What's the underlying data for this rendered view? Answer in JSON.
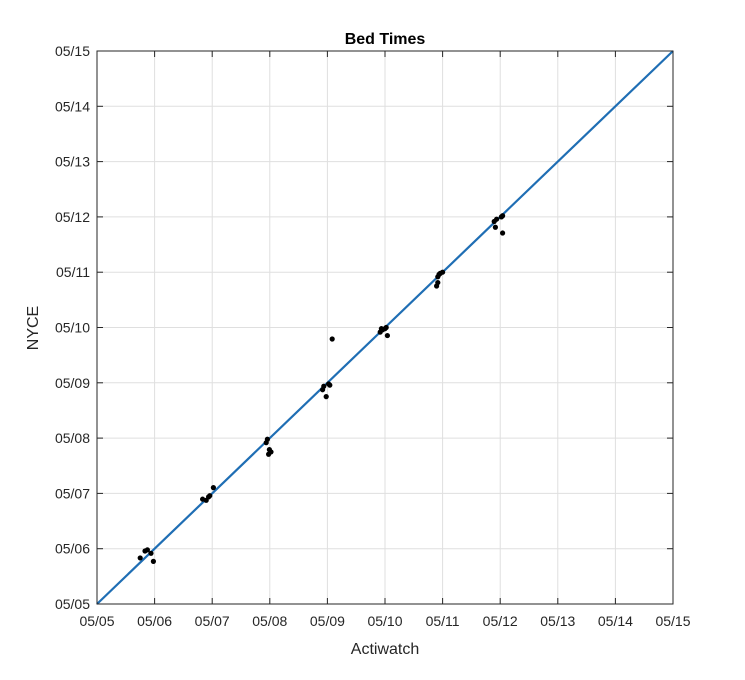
{
  "chart_data": {
    "type": "scatter",
    "title": "Bed Times",
    "xlabel": "Actiwatch",
    "ylabel": "NYCE",
    "xlim": [
      "05/05",
      "05/15"
    ],
    "ylim": [
      "05/05",
      "05/15"
    ],
    "x_ticks": [
      "05/05",
      "05/06",
      "05/07",
      "05/08",
      "05/09",
      "05/10",
      "05/11",
      "05/12",
      "05/13",
      "05/14",
      "05/15"
    ],
    "y_ticks": [
      "05/05",
      "05/06",
      "05/07",
      "05/08",
      "05/09",
      "05/10",
      "05/11",
      "05/12",
      "05/13",
      "05/14",
      "05/15"
    ],
    "grid": true,
    "reference_line": {
      "from": [
        "05/05 00:00",
        "05/05 00:00"
      ],
      "to": [
        "05/15 00:00",
        "05/15 00:00"
      ],
      "color": "#1f6eb4"
    },
    "point_color": "#000000",
    "series": [
      {
        "points": [
          {
            "x": "05/05 18:00",
            "y": "05/05 20:00"
          },
          {
            "x": "05/05 20:00",
            "y": "05/05 23:00"
          },
          {
            "x": "05/05 21:00",
            "y": "05/05 23:30"
          },
          {
            "x": "05/05 22:30",
            "y": "05/05 22:00"
          },
          {
            "x": "05/05 23:30",
            "y": "05/05 18:30"
          },
          {
            "x": "05/06 20:00",
            "y": "05/06 21:30"
          },
          {
            "x": "05/06 21:30",
            "y": "05/06 21:00"
          },
          {
            "x": "05/06 22:30",
            "y": "05/06 22:30"
          },
          {
            "x": "05/06 23:00",
            "y": "05/06 23:00"
          },
          {
            "x": "05/07 00:30",
            "y": "05/07 02:30"
          },
          {
            "x": "05/07 22:30",
            "y": "05/07 22:00"
          },
          {
            "x": "05/07 23:00",
            "y": "05/07 23:30"
          },
          {
            "x": "05/07 23:30",
            "y": "05/07 17:00"
          },
          {
            "x": "05/07 23:50",
            "y": "05/07 19:00"
          },
          {
            "x": "05/08 00:30",
            "y": "05/07 18:00"
          },
          {
            "x": "05/08 22:00",
            "y": "05/08 21:00"
          },
          {
            "x": "05/08 22:30",
            "y": "05/08 22:30"
          },
          {
            "x": "05/08 23:30",
            "y": "05/08 18:00"
          },
          {
            "x": "05/09 00:30",
            "y": "05/08 23:30"
          },
          {
            "x": "05/09 01:00",
            "y": "05/08 23:00"
          },
          {
            "x": "05/09 02:00",
            "y": "05/09 19:00"
          },
          {
            "x": "05/09 22:00",
            "y": "05/09 22:00"
          },
          {
            "x": "05/09 22:30",
            "y": "05/09 23:30"
          },
          {
            "x": "05/09 23:00",
            "y": "05/09 23:00"
          },
          {
            "x": "05/10 00:00",
            "y": "05/09 23:30"
          },
          {
            "x": "05/10 00:30",
            "y": "05/10 00:00"
          },
          {
            "x": "05/10 01:00",
            "y": "05/09 20:30"
          },
          {
            "x": "05/10 21:30",
            "y": "05/10 18:00"
          },
          {
            "x": "05/10 22:00",
            "y": "05/10 19:30"
          },
          {
            "x": "05/10 22:00",
            "y": "05/10 22:00"
          },
          {
            "x": "05/10 22:30",
            "y": "05/10 23:00"
          },
          {
            "x": "05/10 23:00",
            "y": "05/10 23:30"
          },
          {
            "x": "05/11 00:00",
            "y": "05/11 00:00"
          },
          {
            "x": "05/11 21:30",
            "y": "05/11 22:00"
          },
          {
            "x": "05/11 22:00",
            "y": "05/11 19:30"
          },
          {
            "x": "05/11 22:30",
            "y": "05/11 23:00"
          },
          {
            "x": "05/12 00:30",
            "y": "05/12 00:00"
          },
          {
            "x": "05/12 01:00",
            "y": "05/12 00:30"
          },
          {
            "x": "05/12 01:00",
            "y": "05/11 17:00"
          }
        ]
      }
    ]
  }
}
